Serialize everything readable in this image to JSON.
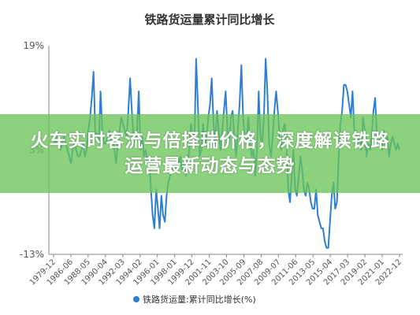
{
  "overlay": {
    "headline": "火车实时客流与倍择瑞价格，深度解读铁路运营最新动态与态势"
  },
  "chart_data": {
    "type": "line",
    "title": "铁路货运量累计同比增长",
    "ylim": [
      -13,
      19
    ],
    "y_ticks": [
      "19%",
      "3%",
      "-13%"
    ],
    "y_tick_values": [
      19,
      3,
      -13
    ],
    "x_ticks": [
      "1979-12",
      "1986-06",
      "1988-05",
      "1990-04",
      "1992-03",
      "1994-02",
      "1996-01",
      "1998-01",
      "1999-12",
      "2001-11",
      "2003-10",
      "2005-09",
      "2007-08",
      "2009-07",
      "2011-06",
      "2013-05",
      "2015-04",
      "2017-03",
      "2019-02",
      "2021-01",
      "2022-12"
    ],
    "legend": {
      "label": "铁路货运量:累计同比增长(%)",
      "position": "bottom"
    },
    "grid": false,
    "colors": {
      "line": "#2e7fd1",
      "axis": "#888888",
      "text": "#333333"
    },
    "series": [
      {
        "name": "铁路货运量:累计同比增长(%)",
        "values": [
          5,
          4,
          6,
          5,
          3,
          4,
          5,
          4,
          3,
          2,
          1,
          3,
          4,
          3,
          2,
          2,
          3,
          4,
          2,
          3,
          6,
          8,
          11,
          15,
          6,
          5,
          4,
          12,
          6,
          4,
          4,
          5,
          6,
          4,
          5,
          3,
          1,
          4,
          6,
          8,
          7,
          6,
          5,
          9,
          14,
          9,
          5,
          4,
          6,
          12,
          3,
          5,
          2,
          3,
          1,
          2,
          -3,
          -7,
          -9,
          -3,
          -6,
          -9,
          -4,
          -7,
          -8,
          -4,
          -2,
          -1,
          0,
          1,
          0,
          2,
          1,
          2,
          0,
          1,
          -1,
          1,
          3,
          7,
          5,
          4,
          17,
          10,
          2,
          3,
          7,
          4,
          5,
          8,
          10,
          14,
          7,
          4,
          9,
          6,
          3,
          6,
          9,
          12,
          6,
          4,
          8,
          9,
          5,
          2,
          6,
          10,
          16,
          8,
          5,
          4,
          8,
          4,
          2,
          3,
          -1,
          3,
          12,
          5,
          4,
          8,
          17,
          12,
          4,
          2,
          5,
          9,
          12,
          9,
          5,
          3,
          6,
          7,
          4,
          -3,
          -5,
          -1,
          3,
          -3,
          -4,
          -1,
          2,
          0,
          -3,
          -4,
          -2,
          -3,
          -5,
          -6,
          -6,
          -3,
          -7,
          -8,
          -9,
          -9,
          -11,
          -12,
          -12,
          -8,
          -4,
          -2,
          -6,
          -5,
          2,
          7,
          9,
          13,
          13,
          12,
          10,
          8,
          12,
          6,
          6,
          4,
          5,
          3,
          8,
          6,
          2,
          4,
          3,
          5,
          9,
          11,
          5,
          5,
          4,
          3,
          6,
          4,
          5,
          2,
          4,
          5,
          4,
          3,
          4,
          3
        ]
      }
    ]
  }
}
